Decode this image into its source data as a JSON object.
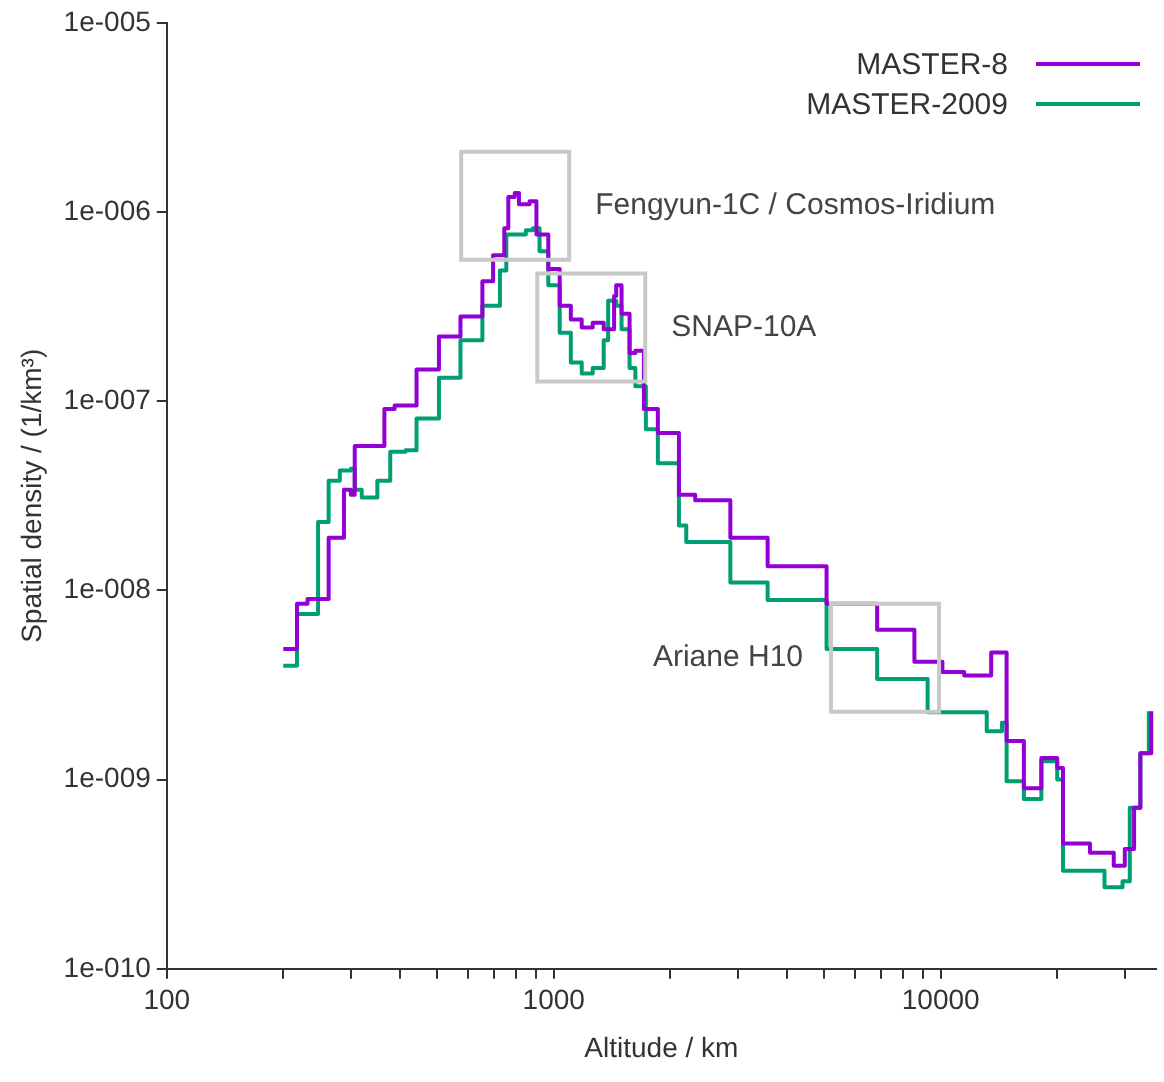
{
  "chart_data": {
    "type": "step",
    "xlabel": "Altitude / km",
    "ylabel": "Spatial density / (1/km³)",
    "log": "xy",
    "grid": false,
    "legend": "top right",
    "xlim": [
      100,
      36000
    ],
    "ylim": [
      1e-10,
      1e-05
    ],
    "xticks": [
      100,
      {
        "value": 200,
        "label": null
      },
      {
        "value": 300,
        "label": null
      },
      {
        "value": 400,
        "label": null
      },
      {
        "value": 500,
        "label": null
      },
      {
        "value": 600,
        "label": null
      },
      {
        "value": 700,
        "label": null
      },
      {
        "value": 800,
        "label": null
      },
      {
        "value": 900,
        "label": null
      },
      1000,
      {
        "value": 2000,
        "label": null
      },
      {
        "value": 3000,
        "label": null
      },
      {
        "value": 4000,
        "label": null
      },
      {
        "value": 5000,
        "label": null
      },
      {
        "value": 6000,
        "label": null
      },
      {
        "value": 7000,
        "label": null
      },
      {
        "value": 8000,
        "label": null
      },
      {
        "value": 9000,
        "label": null
      },
      10000,
      {
        "value": 20000,
        "label": null
      },
      {
        "value": 30000,
        "label": null
      }
    ],
    "yticks": [
      {
        "value": 1e-10,
        "label": "1e-010"
      },
      {
        "value": 1e-09,
        "label": "1e-009"
      },
      {
        "value": 1e-08,
        "label": "1e-008"
      },
      {
        "value": 1e-07,
        "label": "1e-007"
      },
      {
        "value": 1e-06,
        "label": "1e-006"
      },
      {
        "value": 1e-05,
        "label": "1e-005"
      }
    ],
    "annotations": [
      {
        "text": "Fengyun-1C / Cosmos-Iridium",
        "x": 795,
        "y": 1.08e-06
      },
      {
        "text": "SNAP-10A",
        "x": 1250,
        "y": 2.45e-07
      },
      {
        "text": "Ariane H10",
        "x": 7180,
        "y": 4.4e-09
      }
    ],
    "series": [
      {
        "name": "MASTER-8",
        "color": "#9400d3",
        "x": [
          200,
          217,
          231,
          262,
          287,
          299,
          306,
          365,
          388,
          442,
          505,
          574,
          654,
          697,
          745,
          763,
          793,
          813,
          866,
          902,
          968,
          1036,
          1107,
          1181,
          1261,
          1346,
          1432,
          1450,
          1497,
          1570,
          1625,
          1710,
          1858,
          2106,
          2320,
          2860,
          3570,
          5070,
          6850,
          8550,
          10100,
          11500,
          13500,
          14600,
          14800,
          16400,
          18200,
          20000,
          20700,
          24300,
          28000,
          29900,
          31600,
          32800,
          34500,
          35000
        ],
        "values": [
          4.9e-09,
          8.5e-09,
          9e-09,
          1.9e-08,
          3.4e-08,
          3.2e-08,
          5.8e-08,
          9.1e-08,
          9.5e-08,
          1.47e-07,
          2.2e-07,
          2.8e-07,
          4.3e-07,
          5.9e-07,
          8.2e-07,
          1.2e-06,
          1.26e-06,
          1.1e-06,
          1.14e-06,
          7.6e-07,
          5e-07,
          3.2e-07,
          2.7e-07,
          2.45e-07,
          2.6e-07,
          2.4e-07,
          3.6e-07,
          4.1e-07,
          2.9e-07,
          1.8e-07,
          1.85e-07,
          9.1e-08,
          6.8e-08,
          3.2e-08,
          3e-08,
          1.9e-08,
          1.34e-08,
          8.5e-09,
          6.2e-09,
          4.2e-09,
          3.7e-09,
          3.55e-09,
          4.7e-09,
          4.7e-09,
          1.6e-09,
          9e-10,
          1.3e-09,
          1.15e-09,
          4.6e-10,
          4.1e-10,
          3.5e-10,
          4.3e-10,
          7.1e-10,
          1.38e-09,
          1.38e-09,
          2.3e-09
        ]
      },
      {
        "name": "MASTER-2009",
        "color": "#009e73",
        "x": [
          200,
          217,
          246,
          262,
          280,
          299,
          306,
          319,
          350,
          378,
          414,
          442,
          505,
          574,
          654,
          726,
          754,
          847,
          883,
          919,
          968,
          1036,
          1107,
          1181,
          1261,
          1346,
          1382,
          1450,
          1497,
          1570,
          1625,
          1730,
          1858,
          2106,
          2200,
          2860,
          3570,
          5070,
          6850,
          9250,
          13150,
          14400,
          14800,
          16400,
          18200,
          20000,
          20700,
          26500,
          29500,
          30800,
          32800,
          34500
        ],
        "values": [
          4e-09,
          7.5e-09,
          2.3e-08,
          3.8e-08,
          4.3e-08,
          4.4e-08,
          3.4e-08,
          3.1e-08,
          3.8e-08,
          5.4e-08,
          5.5e-08,
          8.1e-08,
          1.33e-07,
          2.1e-07,
          3.2e-07,
          4.9e-07,
          7.6e-07,
          8e-07,
          8.2e-07,
          6.2e-07,
          4.1e-07,
          2.3e-07,
          1.6e-07,
          1.4e-07,
          1.5e-07,
          2.1e-07,
          3.4e-07,
          3.2e-07,
          2.4e-07,
          1.5e-07,
          1.2e-07,
          7.1e-08,
          4.7e-08,
          2.2e-08,
          1.8e-08,
          1.1e-08,
          8.9e-09,
          4.9e-09,
          3.4e-09,
          2.27e-09,
          1.8e-09,
          2e-09,
          9.8e-10,
          7.9e-10,
          1.25e-09,
          1e-09,
          3.3e-10,
          2.7e-10,
          2.9e-10,
          7.1e-10,
          1.38e-09,
          2.3e-09
        ]
      }
    ]
  }
}
